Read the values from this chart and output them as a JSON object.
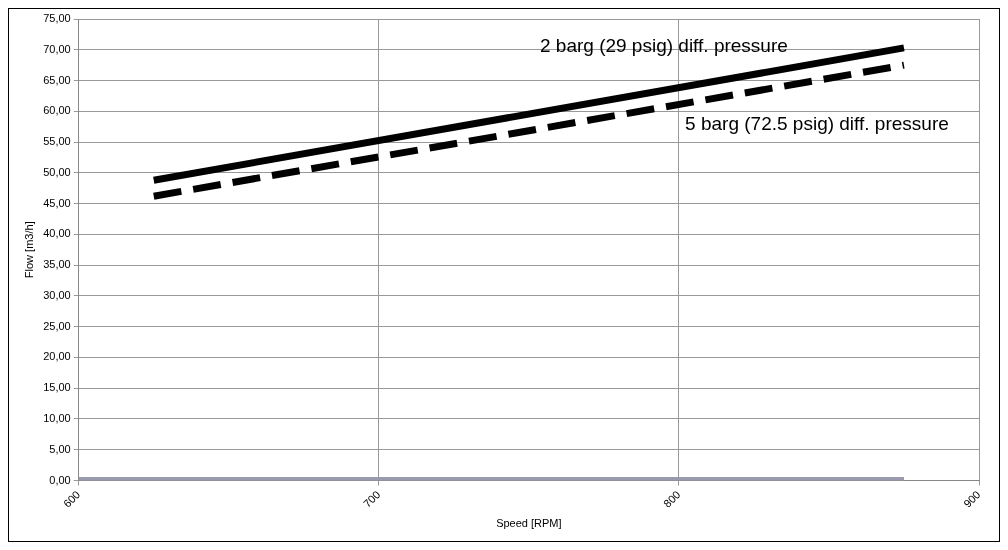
{
  "chart_data": {
    "type": "line",
    "xlabel": "Speed [RPM]",
    "ylabel": "Flow [m3/h]",
    "series": [
      {
        "x": [
          625,
          875
        ],
        "values": [
          48.8,
          70.3
        ],
        "color": "#000000",
        "line_style": "solid"
      },
      {
        "x": [
          625,
          875
        ],
        "values": [
          46.2,
          67.5
        ],
        "color": "#000000",
        "line_style": "dashed"
      },
      {
        "x": [
          600,
          875
        ],
        "values": [
          0,
          0
        ],
        "color": "#9a9aae",
        "line_style": "solid"
      }
    ],
    "xlim": [
      600,
      900
    ],
    "xticks": [
      600,
      700,
      800,
      900
    ],
    "ylim": [
      0,
      75
    ],
    "yticks": [
      {
        "value": 0,
        "label": "0,00"
      },
      {
        "value": 5,
        "label": "5,00"
      },
      {
        "value": 10,
        "label": "10,00"
      },
      {
        "value": 15,
        "label": "15,00"
      },
      {
        "value": 20,
        "label": "20,00"
      },
      {
        "value": 25,
        "label": "25,00"
      },
      {
        "value": 30,
        "label": "30,00"
      },
      {
        "value": 35,
        "label": "35,00"
      },
      {
        "value": 40,
        "label": "40,00"
      },
      {
        "value": 45,
        "label": "45,00"
      },
      {
        "value": 50,
        "label": "50,00"
      },
      {
        "value": 55,
        "label": "55,00"
      },
      {
        "value": 60,
        "label": "60,00"
      },
      {
        "value": 65,
        "label": "65,00"
      },
      {
        "value": 70,
        "label": "70,00"
      },
      {
        "value": 75,
        "label": "75,00"
      }
    ],
    "annotations": [
      "2 barg (29 psig) diff. pressure",
      "5 barg (72.5 psig) diff. pressure"
    ],
    "grid": true,
    "legend": false,
    "marker": "none"
  }
}
